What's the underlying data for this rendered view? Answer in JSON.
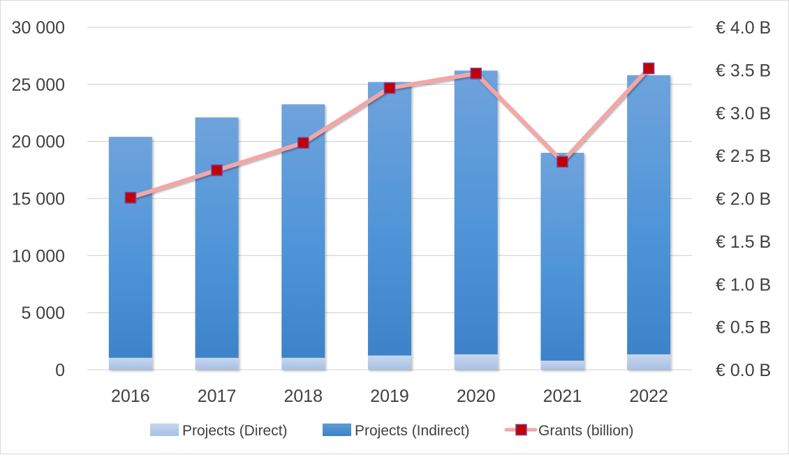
{
  "chart_data": {
    "type": "bar",
    "stacked": true,
    "categories": [
      "2016",
      "2017",
      "2018",
      "2019",
      "2020",
      "2021",
      "2022"
    ],
    "series": [
      {
        "name": "Projects (Direct)",
        "kind": "bar",
        "axis": "left",
        "color": "#b4c7e7",
        "values": [
          1050,
          1050,
          1050,
          1250,
          1350,
          800,
          1350
        ]
      },
      {
        "name": "Projects (Indirect)",
        "kind": "bar",
        "axis": "left",
        "color": "#5b9bd5",
        "values": [
          19350,
          21050,
          22200,
          23950,
          24850,
          18200,
          24450
        ]
      },
      {
        "name": "Grants (billion)",
        "kind": "line",
        "axis": "right",
        "line_color": "#f4a6a6",
        "marker_color": "#c00000",
        "marker_edge_color": "#7b3f9e",
        "values": [
          2.01,
          2.33,
          2.65,
          3.29,
          3.46,
          2.43,
          3.52
        ]
      }
    ],
    "y_left": {
      "ylim": [
        0,
        30000
      ],
      "ticks": [
        0,
        5000,
        10000,
        15000,
        20000,
        25000,
        30000
      ],
      "tick_labels": [
        "0",
        "5 000",
        "10 000",
        "15 000",
        "20 000",
        "25 000",
        "30 000"
      ]
    },
    "y_right": {
      "ylim": [
        0,
        4.0
      ],
      "ticks": [
        0,
        0.5,
        1.0,
        1.5,
        2.0,
        2.5,
        3.0,
        3.5,
        4.0
      ],
      "tick_labels": [
        "€ 0.0 B",
        "€ 0.5 B",
        "€ 1.0 B",
        "€ 1.5 B",
        "€ 2.0 B",
        "€ 2.5 B",
        "€ 3.0 B",
        "€ 3.5 B",
        "€ 4.0 B"
      ]
    },
    "title": "",
    "xlabel": "",
    "ylabel": "",
    "grid": true,
    "legend": {
      "position": "bottom",
      "entries": [
        "Projects (Direct)",
        "Projects (Indirect)",
        "Grants (billion)"
      ]
    },
    "gridline_color": "#d9d9d9"
  }
}
